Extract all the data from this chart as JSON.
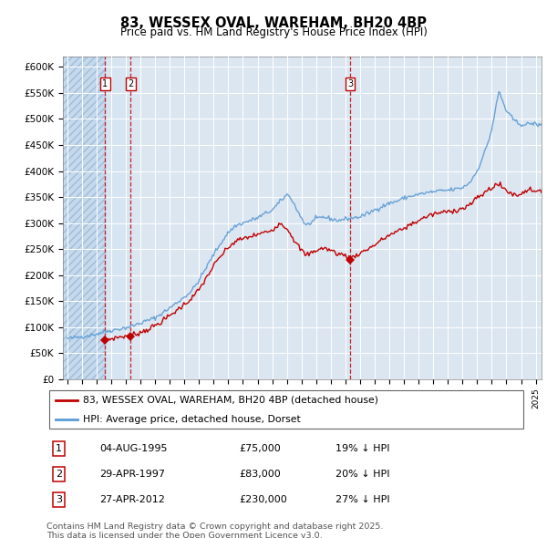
{
  "title": "83, WESSEX OVAL, WAREHAM, BH20 4BP",
  "subtitle": "Price paid vs. HM Land Registry's House Price Index (HPI)",
  "legend_line1": "83, WESSEX OVAL, WAREHAM, BH20 4BP (detached house)",
  "legend_line2": "HPI: Average price, detached house, Dorset",
  "footer_line1": "Contains HM Land Registry data © Crown copyright and database right 2025.",
  "footer_line2": "This data is licensed under the Open Government Licence v3.0.",
  "sales": [
    {
      "num": 1,
      "date": "04-AUG-1995",
      "price": 75000,
      "year": 1995.58,
      "pct": "19%",
      "dir": "↓"
    },
    {
      "num": 2,
      "date": "29-APR-1997",
      "price": 83000,
      "year": 1997.32,
      "pct": "20%",
      "dir": "↓"
    },
    {
      "num": 3,
      "date": "27-APR-2012",
      "price": 230000,
      "year": 2012.32,
      "pct": "27%",
      "dir": "↓"
    }
  ],
  "hpi_color": "#5b9bd5",
  "red_color": "#c00000",
  "sale_color": "#c00000",
  "plot_bg": "#dce6f1",
  "hatch_bg": "#c5d9ed",
  "ylim": [
    0,
    620000
  ],
  "yticks": [
    0,
    50000,
    100000,
    150000,
    200000,
    250000,
    300000,
    350000,
    400000,
    450000,
    500000,
    550000,
    600000
  ],
  "xlim": [
    1992.7,
    2025.4
  ]
}
